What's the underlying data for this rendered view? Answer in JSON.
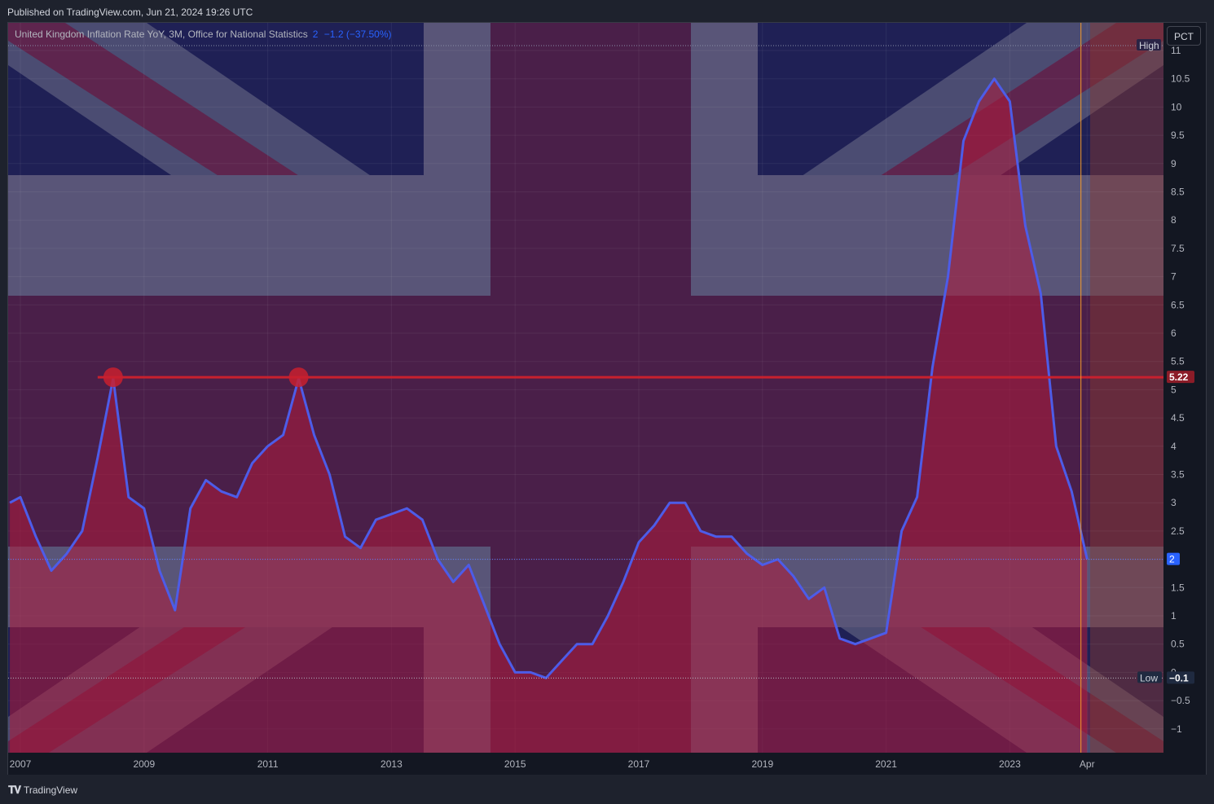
{
  "header": {
    "published": "Published on TradingView.com, Jun 21, 2024 19:26 UTC"
  },
  "legend": {
    "title": "United Kingdom Inflation Rate YoY, 3M, Office for National Statistics",
    "last": "2",
    "change": "−1.2 (−37.50%)"
  },
  "scale_button": "PCT",
  "footer": {
    "brand": "TradingView"
  },
  "colors": {
    "line": "#4d5ce8",
    "fill": "#b01a3a",
    "level": "#c8202e",
    "axis_text": "#b2b5be",
    "last_badge": "#2962ff",
    "cursor_line": "#f59c2b"
  },
  "chart_data": {
    "type": "area",
    "title": "United Kingdom Inflation Rate YoY, 3M, Office for National Statistics",
    "xlabel": "",
    "ylabel": "",
    "ylim": [
      -1.45,
      11.1
    ],
    "y_ticks": [
      "11",
      "10.5",
      "10",
      "9.5",
      "9",
      "8.5",
      "8",
      "7.5",
      "7",
      "6.5",
      "6",
      "5.5",
      "5",
      "4.5",
      "4",
      "3.5",
      "3",
      "2.5",
      "2",
      "1.5",
      "1",
      "0.5",
      "0",
      "−0.5",
      "−1"
    ],
    "x_ticks": [
      "2007",
      "2009",
      "2011",
      "2013",
      "2015",
      "2017",
      "2019",
      "2021",
      "2023",
      "Apr"
    ],
    "x_tick_years": [
      2007,
      2009,
      2011,
      2013,
      2015,
      2017,
      2019,
      2021,
      2023,
      2024.25
    ],
    "series": [
      {
        "x": [
          2006.83,
          2007.0,
          2007.25,
          2007.5,
          2007.75,
          2008.0,
          2008.25,
          2008.5,
          2008.75,
          2009.0,
          2009.25,
          2009.5,
          2009.75,
          2010.0,
          2010.25,
          2010.5,
          2010.75,
          2011.0,
          2011.25,
          2011.5,
          2011.75,
          2012.0,
          2012.25,
          2012.5,
          2012.75,
          2013.0,
          2013.25,
          2013.5,
          2013.75,
          2014.0,
          2014.25,
          2014.5,
          2014.75,
          2015.0,
          2015.25,
          2015.5,
          2015.75,
          2016.0,
          2016.25,
          2016.5,
          2016.75,
          2017.0,
          2017.25,
          2017.5,
          2017.75,
          2018.0,
          2018.25,
          2018.5,
          2018.75,
          2019.0,
          2019.25,
          2019.5,
          2019.75,
          2020.0,
          2020.25,
          2020.5,
          2020.75,
          2021.0,
          2021.25,
          2021.5,
          2021.75,
          2022.0,
          2022.25,
          2022.5,
          2022.75,
          2023.0,
          2023.25,
          2023.5,
          2023.75,
          2024.0,
          2024.25
        ],
        "values": [
          3.0,
          3.1,
          2.4,
          1.8,
          2.1,
          2.5,
          3.8,
          5.2,
          3.1,
          2.9,
          1.8,
          1.1,
          2.9,
          3.4,
          3.2,
          3.1,
          3.7,
          4.0,
          4.2,
          5.2,
          4.2,
          3.5,
          2.4,
          2.2,
          2.7,
          2.8,
          2.9,
          2.7,
          2.0,
          1.6,
          1.9,
          1.2,
          0.5,
          0.0,
          0.0,
          -0.1,
          0.2,
          0.5,
          0.5,
          1.0,
          1.6,
          2.3,
          2.6,
          3.0,
          3.0,
          2.5,
          2.4,
          2.4,
          2.1,
          1.9,
          2.0,
          1.7,
          1.3,
          1.5,
          0.6,
          0.5,
          0.6,
          0.7,
          2.5,
          3.1,
          5.4,
          7.0,
          9.4,
          10.1,
          10.5,
          10.1,
          7.9,
          6.7,
          4.0,
          3.2,
          2.0
        ]
      }
    ],
    "level_line": {
      "value": 5.22,
      "label": "5.22"
    },
    "markers": [
      {
        "x": 2008.5,
        "y": 5.22
      },
      {
        "x": 2011.5,
        "y": 5.22
      }
    ],
    "high": {
      "label": "High",
      "value": 10.5
    },
    "low": {
      "label": "Low",
      "value": -0.1,
      "value_label": "−0.1"
    },
    "last_value": {
      "value": 2.0,
      "label": "2"
    },
    "grid": true
  }
}
